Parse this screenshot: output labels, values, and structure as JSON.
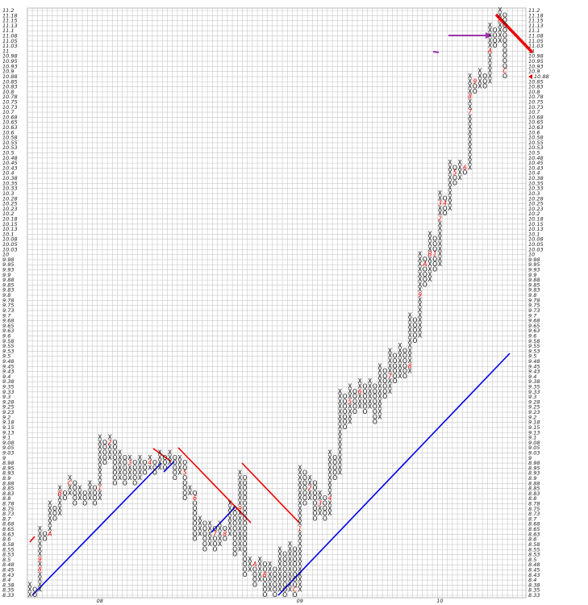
{
  "chart_data": {
    "type": "pointfigure",
    "marker_color": "#dd0000",
    "grid": true,
    "ylim": [
      8.325,
      11.2
    ],
    "yticks": [
      {
        "value": 8.325,
        "label": "8.33"
      },
      8.35,
      {
        "value": 8.375,
        "label": "8.38"
      },
      8.4,
      {
        "value": 8.425,
        "label": "8.43"
      },
      8.45,
      {
        "value": 8.475,
        "label": "8.48"
      },
      8.5,
      {
        "value": 8.525,
        "label": "8.53"
      },
      8.55,
      {
        "value": 8.575,
        "label": "8.58"
      },
      8.6,
      {
        "value": 8.625,
        "label": "8.63"
      },
      8.65,
      {
        "value": 8.675,
        "label": "8.68"
      },
      8.7,
      {
        "value": 8.725,
        "label": "8.73"
      },
      8.75,
      {
        "value": 8.775,
        "label": "8.78"
      },
      8.8,
      {
        "value": 8.825,
        "label": "8.83"
      },
      8.85,
      {
        "value": 8.875,
        "label": "8.88"
      },
      8.9,
      {
        "value": 8.925,
        "label": "8.93"
      },
      8.95,
      {
        "value": 8.975,
        "label": "8.98"
      },
      9,
      {
        "value": 9.025,
        "label": "9.03"
      },
      9.05,
      {
        "value": 9.075,
        "label": "9.08"
      },
      9.1,
      {
        "value": 9.125,
        "label": "9.13"
      },
      9.15,
      {
        "value": 9.175,
        "label": "9.18"
      },
      9.2,
      {
        "value": 9.225,
        "label": "9.23"
      },
      9.25,
      {
        "value": 9.275,
        "label": "9.28"
      },
      9.3,
      {
        "value": 9.325,
        "label": "9.33"
      },
      9.35,
      {
        "value": 9.375,
        "label": "9.38"
      },
      9.4,
      {
        "value": 9.425,
        "label": "9.43"
      },
      9.45,
      {
        "value": 9.475,
        "label": "9.48"
      },
      9.5,
      {
        "value": 9.525,
        "label": "9.53"
      },
      9.55,
      {
        "value": 9.575,
        "label": "9.58"
      },
      9.6,
      {
        "value": 9.625,
        "label": "9.63"
      },
      9.65,
      {
        "value": 9.675,
        "label": "9.68"
      },
      9.7,
      {
        "value": 9.725,
        "label": "9.73"
      },
      9.75,
      {
        "value": 9.775,
        "label": "9.78"
      },
      9.8,
      {
        "value": 9.825,
        "label": "9.83"
      },
      9.85,
      {
        "value": 9.875,
        "label": "9.88"
      },
      9.9,
      {
        "value": 9.925,
        "label": "9.93"
      },
      9.95,
      {
        "value": 9.975,
        "label": "9.98"
      },
      10,
      {
        "value": 10.025,
        "label": "10.03"
      },
      10.05,
      {
        "value": 10.075,
        "label": "10.08"
      },
      10.1,
      {
        "value": 10.125,
        "label": "10.13"
      },
      10.15,
      {
        "value": 10.175,
        "label": "10.18"
      },
      10.2,
      {
        "value": 10.225,
        "label": "10.23"
      },
      10.25,
      {
        "value": 10.275,
        "label": "10.28"
      },
      10.3,
      {
        "value": 10.325,
        "label": "10.33"
      },
      10.35,
      {
        "value": 10.375,
        "label": "10.38"
      },
      10.4,
      {
        "value": 10.425,
        "label": "10.43"
      },
      10.45,
      {
        "value": 10.475,
        "label": "10.48"
      },
      10.5,
      {
        "value": 10.525,
        "label": "10.53"
      },
      10.55,
      {
        "value": 10.575,
        "label": "10.58"
      },
      10.6,
      {
        "value": 10.625,
        "label": "10.63"
      },
      10.65,
      {
        "value": 10.675,
        "label": "10.68"
      },
      10.7,
      {
        "value": 10.725,
        "label": "10.73"
      },
      10.75,
      {
        "value": 10.775,
        "label": "10.78"
      },
      10.8,
      {
        "value": 10.825,
        "label": "10.83"
      },
      10.85,
      {
        "value": 10.875,
        "label": "10.88"
      },
      10.9,
      {
        "value": 10.925,
        "label": "10.93"
      },
      10.95,
      {
        "value": 10.975,
        "label": "10.98"
      },
      11,
      {
        "value": 11.025,
        "label": "11.03"
      },
      11.05,
      {
        "value": 11.075,
        "label": "11.08"
      },
      11.1,
      {
        "value": 11.125,
        "label": "11.13"
      },
      11.15,
      {
        "value": 11.175,
        "label": "11.18"
      },
      11.2
    ],
    "last_price": {
      "value": 10.875,
      "label": "10.88"
    },
    "columns": [
      {
        "type": "X",
        "low": 8.325,
        "high": 8.375
      },
      {
        "type": "O",
        "low": 8.325,
        "high": 8.35
      },
      {
        "type": "X",
        "low": 8.35,
        "high": 8.65,
        "marks": [
          {
            "value": 8.45,
            "label": "8"
          },
          {
            "value": 8.5,
            "label": "9"
          }
        ]
      },
      {
        "type": "O",
        "low": 8.6,
        "high": 8.625
      },
      {
        "type": "X",
        "low": 8.625,
        "high": 8.775,
        "marks": [
          {
            "value": 8.625,
            "label": "A"
          }
        ]
      },
      {
        "type": "O",
        "low": 8.7,
        "high": 8.75
      },
      {
        "type": "X",
        "low": 8.725,
        "high": 8.85,
        "marks": [
          {
            "value": 8.825,
            "label": "B"
          }
        ]
      },
      {
        "type": "O",
        "low": 8.8,
        "high": 8.825
      },
      {
        "type": "X",
        "low": 8.825,
        "high": 8.9,
        "marks": [
          {
            "value": 8.875,
            "label": "C"
          }
        ]
      },
      {
        "type": "O",
        "low": 8.775,
        "high": 8.875
      },
      {
        "type": "X",
        "low": 8.8,
        "high": 8.85
      },
      {
        "type": "O",
        "low": 8.775,
        "high": 8.825
      },
      {
        "type": "X",
        "low": 8.8,
        "high": 8.875
      },
      {
        "type": "O",
        "low": 8.775,
        "high": 8.85
      },
      {
        "type": "X",
        "low": 8.8,
        "high": 9.1,
        "label": "08",
        "marks": [
          {
            "value": 8.85,
            "label": "1"
          }
        ]
      },
      {
        "type": "O",
        "low": 8.975,
        "high": 9.075
      },
      {
        "type": "X",
        "low": 9,
        "high": 9.1,
        "marks": [
          {
            "value": 9.075,
            "label": "2"
          }
        ]
      },
      {
        "type": "O",
        "low": 8.875,
        "high": 9.075
      },
      {
        "type": "X",
        "low": 8.9,
        "high": 9.025
      },
      {
        "type": "O",
        "low": 8.875,
        "high": 9
      },
      {
        "type": "X",
        "low": 8.9,
        "high": 9,
        "marks": [
          {
            "value": 8.975,
            "label": "3"
          }
        ]
      },
      {
        "type": "O",
        "low": 8.875,
        "high": 8.975
      },
      {
        "type": "X",
        "low": 8.9,
        "high": 9
      },
      {
        "type": "O",
        "low": 8.925,
        "high": 8.975
      },
      {
        "type": "X",
        "low": 8.95,
        "high": 9,
        "marks": [
          {
            "value": 8.975,
            "label": "4"
          }
        ]
      },
      {
        "type": "O",
        "low": 8.925,
        "high": 8.975
      },
      {
        "type": "X",
        "low": 8.95,
        "high": 9.025
      },
      {
        "type": "O",
        "low": 8.95,
        "high": 9
      },
      {
        "type": "X",
        "low": 8.975,
        "high": 9.025
      },
      {
        "type": "O",
        "low": 8.9,
        "high": 9
      },
      {
        "type": "X",
        "low": 8.925,
        "high": 9
      },
      {
        "type": "O",
        "low": 8.8,
        "high": 8.975,
        "marks": [
          {
            "value": 8.925,
            "label": "5"
          }
        ]
      },
      {
        "type": "X",
        "low": 8.825,
        "high": 8.85
      },
      {
        "type": "O",
        "low": 8.6,
        "high": 8.825,
        "marks": [
          {
            "value": 8.8,
            "label": "6"
          }
        ]
      },
      {
        "type": "X",
        "low": 8.625,
        "high": 8.7
      },
      {
        "type": "O",
        "low": 8.55,
        "high": 8.675
      },
      {
        "type": "X",
        "low": 8.575,
        "high": 8.675
      },
      {
        "type": "O",
        "low": 8.55,
        "high": 8.65,
        "marks": [
          {
            "value": 8.625,
            "label": "7"
          }
        ]
      },
      {
        "type": "X",
        "low": 8.575,
        "high": 8.675
      },
      {
        "type": "O",
        "low": 8.6,
        "high": 8.65,
        "marks": [
          {
            "value": 8.625,
            "label": "8"
          }
        ]
      },
      {
        "type": "X",
        "low": 8.625,
        "high": 8.775
      },
      {
        "type": "O",
        "low": 8.525,
        "high": 8.75
      },
      {
        "type": "X",
        "low": 8.55,
        "high": 8.925,
        "marks": [
          {
            "value": 8.75,
            "label": "9"
          }
        ]
      },
      {
        "type": "O",
        "low": 8.425,
        "high": 8.9
      },
      {
        "type": "X",
        "low": 8.45,
        "high": 8.5
      },
      {
        "type": "O",
        "low": 8.375,
        "high": 8.475,
        "marks": [
          {
            "value": 8.475,
            "label": "A"
          }
        ]
      },
      {
        "type": "X",
        "low": 8.4,
        "high": 8.5
      },
      {
        "type": "O",
        "low": 8.325,
        "high": 8.475,
        "marks": [
          {
            "value": 8.425,
            "label": "B"
          }
        ]
      },
      {
        "type": "X",
        "low": 8.35,
        "high": 8.475
      },
      {
        "type": "O",
        "low": 8.325,
        "high": 8.45
      },
      {
        "type": "X",
        "low": 8.35,
        "high": 8.55
      },
      {
        "type": "O",
        "low": 8.325,
        "high": 8.525
      },
      {
        "type": "X",
        "low": 8.35,
        "high": 8.575
      },
      {
        "type": "O",
        "low": 8.325,
        "high": 8.55,
        "marks": [
          {
            "value": 8.35,
            "label": "C"
          }
        ]
      },
      {
        "type": "X",
        "low": 8.35,
        "high": 8.95,
        "label": "09",
        "marks": [
          {
            "value": 8.65,
            "label": "1"
          }
        ]
      },
      {
        "type": "O",
        "low": 8.775,
        "high": 8.925
      },
      {
        "type": "X",
        "low": 8.8,
        "high": 8.9,
        "marks": [
          {
            "value": 8.85,
            "label": "2"
          }
        ]
      },
      {
        "type": "O",
        "low": 8.7,
        "high": 8.875
      },
      {
        "type": "X",
        "low": 8.725,
        "high": 8.825,
        "marks": [
          {
            "value": 8.775,
            "label": "3"
          }
        ]
      },
      {
        "type": "O",
        "low": 8.7,
        "high": 8.8
      },
      {
        "type": "X",
        "low": 8.725,
        "high": 9.025,
        "marks": [
          {
            "value": 8.8,
            "label": "4"
          }
        ]
      },
      {
        "type": "O",
        "low": 8.9,
        "high": 9
      },
      {
        "type": "X",
        "low": 8.925,
        "high": 9.325
      },
      {
        "type": "O",
        "low": 9.15,
        "high": 9.3
      },
      {
        "type": "X",
        "low": 9.175,
        "high": 9.35,
        "marks": [
          {
            "value": 9.275,
            "label": "5"
          }
        ]
      },
      {
        "type": "O",
        "low": 9.225,
        "high": 9.325
      },
      {
        "type": "X",
        "low": 9.25,
        "high": 9.375,
        "marks": [
          {
            "value": 9.325,
            "label": "6"
          }
        ]
      },
      {
        "type": "O",
        "low": 9.225,
        "high": 9.35
      },
      {
        "type": "X",
        "low": 9.25,
        "high": 9.375
      },
      {
        "type": "O",
        "low": 9.175,
        "high": 9.35
      },
      {
        "type": "X",
        "low": 9.2,
        "high": 9.45
      },
      {
        "type": "O",
        "low": 9.3,
        "high": 9.425
      },
      {
        "type": "X",
        "low": 9.325,
        "high": 9.525,
        "marks": [
          {
            "value": 9.4,
            "label": "7"
          }
        ]
      },
      {
        "type": "O",
        "low": 9.375,
        "high": 9.5
      },
      {
        "type": "X",
        "low": 9.4,
        "high": 9.55
      },
      {
        "type": "O",
        "low": 9.4,
        "high": 9.525
      },
      {
        "type": "X",
        "low": 9.425,
        "high": 9.7,
        "marks": [
          {
            "value": 9.45,
            "label": "8"
          }
        ]
      },
      {
        "type": "O",
        "low": 9.575,
        "high": 9.675
      },
      {
        "type": "X",
        "low": 9.6,
        "high": 10,
        "marks": [
          {
            "value": 9.8,
            "label": "9"
          }
        ]
      },
      {
        "type": "O",
        "low": 9.85,
        "high": 9.975,
        "marks": [
          {
            "value": 9.95,
            "label": "A"
          }
        ]
      },
      {
        "type": "X",
        "low": 9.875,
        "high": 10.1,
        "marks": [
          {
            "value": 10,
            "label": "B"
          }
        ]
      },
      {
        "type": "O",
        "low": 9.925,
        "high": 10.075,
        "marks": [
          {
            "value": 10,
            "label": "1"
          }
        ]
      },
      {
        "type": "X",
        "low": 9.95,
        "high": 10.3,
        "label": "10",
        "marks": [
          {
            "value": 10.175,
            "label": "2"
          },
          {
            "value": 10.25,
            "label": "3"
          }
        ]
      },
      {
        "type": "O",
        "low": 10.2,
        "high": 10.275,
        "marks": [
          {
            "value": 10.25,
            "label": "4"
          }
        ]
      },
      {
        "type": "X",
        "low": 10.225,
        "high": 10.45
      },
      {
        "type": "O",
        "low": 10.35,
        "high": 10.425,
        "marks": [
          {
            "value": 10.4,
            "label": "5"
          }
        ]
      },
      {
        "type": "X",
        "low": 10.375,
        "high": 10.45
      },
      {
        "type": "O",
        "low": 10.4,
        "high": 10.425,
        "marks": [
          {
            "value": 10.425,
            "label": "6"
          }
        ]
      },
      {
        "type": "X",
        "low": 10.425,
        "high": 10.875,
        "marks": [
          {
            "value": 10.7,
            "label": "7"
          },
          {
            "value": 10.775,
            "label": "8"
          }
        ]
      },
      {
        "type": "O",
        "low": 10.8,
        "high": 10.85,
        "marks": [
          {
            "value": 10.85,
            "label": "9"
          }
        ]
      },
      {
        "type": "X",
        "low": 10.825,
        "high": 10.9
      },
      {
        "type": "O",
        "low": 10.825,
        "high": 10.875
      },
      {
        "type": "X",
        "low": 10.85,
        "high": 11.125,
        "marks": [
          {
            "value": 11,
            "label": "A"
          }
        ]
      },
      {
        "type": "O",
        "low": 11.025,
        "high": 11.1
      },
      {
        "type": "X",
        "low": 11.05,
        "high": 11.2,
        "marks": [
          {
            "value": 11.15,
            "label": "B"
          }
        ]
      },
      {
        "type": "O",
        "low": 10.875,
        "high": 11.175,
        "marks": [
          {
            "value": 10.9,
            "label": "C"
          }
        ]
      }
    ]
  }
}
